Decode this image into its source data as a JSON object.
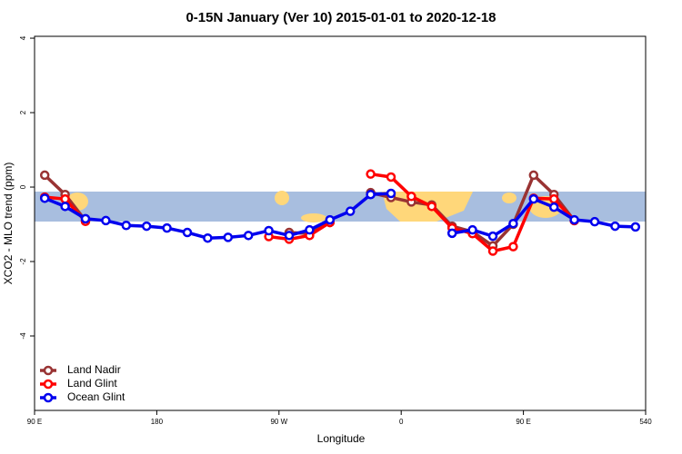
{
  "chart_data": {
    "type": "line",
    "title": "0-15N January (Ver 10)   2015-01-01 to 2020-12-18",
    "x_label": "Longitude",
    "y_label": "XCO2 - MLO trend (ppm)",
    "xlim": [
      90,
      540
    ],
    "ylim": [
      -6,
      4.05
    ],
    "xticks": [
      {
        "value": 90,
        "label": "90 E"
      },
      180,
      {
        "value": 270,
        "label": "90 W"
      },
      {
        "value": 360,
        "label": "0"
      },
      {
        "value": 450,
        "label": "90 E"
      },
      540
    ],
    "yticks": [
      -4,
      -2,
      0,
      2,
      4
    ],
    "legend": "bottom-left",
    "x": [
      97.5,
      112.5,
      127.5,
      142.5,
      157.5,
      172.5,
      187.5,
      202.5,
      217.5,
      232.5,
      247.5,
      262.5,
      277.5,
      292.5,
      307.5,
      322.5,
      337.5,
      352.5,
      367.5,
      382.5,
      397.5,
      412.5,
      427.5,
      442.5,
      457.5,
      472.5,
      487.5,
      502.5,
      517.5,
      532.5
    ],
    "series": [
      {
        "name": "Land Nadir",
        "color": "#993333",
        "values": [
          0.32,
          -0.2,
          -0.9,
          null,
          null,
          null,
          null,
          null,
          null,
          null,
          null,
          null,
          -1.22,
          -1.25,
          -0.95,
          null,
          -0.15,
          -0.28,
          -0.4,
          -0.48,
          -1.05,
          -1.2,
          -1.58,
          -1.0,
          0.32,
          -0.2,
          -0.9,
          null,
          null,
          null
        ]
      },
      {
        "name": "Land Glint",
        "color": "#ff0000",
        "values": [
          -0.27,
          -0.32,
          -0.92,
          null,
          null,
          null,
          null,
          null,
          null,
          null,
          null,
          -1.33,
          -1.4,
          -1.3,
          -0.95,
          null,
          0.35,
          0.27,
          -0.25,
          -0.52,
          -1.1,
          -1.25,
          -1.72,
          -1.6,
          -0.3,
          -0.32,
          -0.9,
          null,
          null,
          null
        ]
      },
      {
        "name": "Ocean Glint",
        "color": "#0000ee",
        "values": [
          -0.3,
          -0.52,
          -0.85,
          -0.9,
          -1.03,
          -1.05,
          -1.1,
          -1.22,
          -1.37,
          -1.35,
          -1.3,
          -1.17,
          -1.3,
          -1.15,
          -0.88,
          -0.65,
          -0.2,
          -0.17,
          null,
          null,
          -1.24,
          -1.15,
          -1.32,
          -0.98,
          -0.32,
          -0.54,
          -0.88,
          -0.93,
          -1.05,
          -1.07
        ]
      }
    ]
  }
}
